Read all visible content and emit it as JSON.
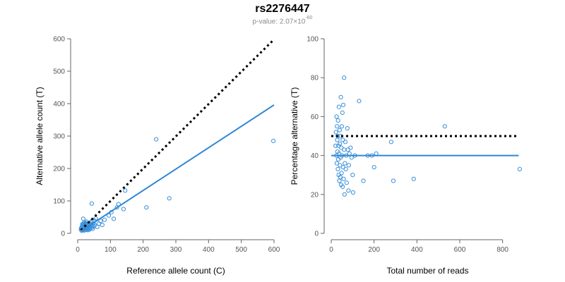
{
  "title": "rs2276447",
  "subtitle": {
    "prefix": "p-value: 2.07×10",
    "exponent": "-60"
  },
  "colors": {
    "points": "#3a8fd9",
    "fit_line": "#2f86d6",
    "reference_line": "#000000"
  },
  "chart_data": [
    {
      "type": "scatter",
      "xlabel": "Reference allele count (C)",
      "ylabel": "Alternative allele count (T)",
      "xlim": [
        0,
        600
      ],
      "ylim": [
        0,
        600
      ],
      "x_ticks": [
        0,
        100,
        200,
        300,
        400,
        500,
        600
      ],
      "y_ticks": [
        0,
        100,
        200,
        300,
        400,
        500,
        600
      ],
      "grid": false,
      "lines": [
        {
          "style": "dotted",
          "color": "#000000",
          "x": [
            10,
            600
          ],
          "y": [
            10,
            598
          ]
        },
        {
          "style": "solid",
          "color": "#2f86d6",
          "x": [
            10,
            600
          ],
          "y": [
            7,
            396
          ]
        }
      ],
      "points": [
        [
          12,
          8
        ],
        [
          14,
          12
        ],
        [
          16,
          10
        ],
        [
          18,
          14
        ],
        [
          20,
          9
        ],
        [
          22,
          16
        ],
        [
          24,
          12
        ],
        [
          25,
          20
        ],
        [
          26,
          11
        ],
        [
          28,
          15
        ],
        [
          30,
          18
        ],
        [
          31,
          10
        ],
        [
          32,
          22
        ],
        [
          33,
          13
        ],
        [
          34,
          17
        ],
        [
          35,
          25
        ],
        [
          36,
          12
        ],
        [
          38,
          20
        ],
        [
          40,
          16
        ],
        [
          42,
          28
        ],
        [
          44,
          18
        ],
        [
          45,
          24
        ],
        [
          46,
          14
        ],
        [
          48,
          30
        ],
        [
          50,
          22
        ],
        [
          52,
          26
        ],
        [
          15,
          25
        ],
        [
          18,
          30
        ],
        [
          20,
          34
        ],
        [
          22,
          20
        ],
        [
          24,
          28
        ],
        [
          26,
          32
        ],
        [
          28,
          24
        ],
        [
          30,
          14
        ],
        [
          32,
          30
        ],
        [
          12,
          18
        ],
        [
          14,
          28
        ],
        [
          16,
          22
        ],
        [
          10,
          12
        ],
        [
          11,
          16
        ],
        [
          13,
          20
        ],
        [
          17,
          45
        ],
        [
          19,
          12
        ],
        [
          21,
          26
        ],
        [
          23,
          30
        ],
        [
          27,
          36
        ],
        [
          29,
          22
        ],
        [
          34,
          26
        ],
        [
          36,
          32
        ],
        [
          40,
          35
        ],
        [
          44,
          38
        ],
        [
          43,
          92
        ],
        [
          50,
          40
        ],
        [
          55,
          46
        ],
        [
          60,
          20
        ],
        [
          65,
          30
        ],
        [
          70,
          38
        ],
        [
          75,
          26
        ],
        [
          82,
          42
        ],
        [
          95,
          55
        ],
        [
          103,
          65
        ],
        [
          110,
          45
        ],
        [
          120,
          80
        ],
        [
          125,
          90
        ],
        [
          140,
          75
        ],
        [
          145,
          132
        ],
        [
          210,
          80
        ],
        [
          240,
          290
        ],
        [
          280,
          108
        ],
        [
          598,
          285
        ]
      ]
    },
    {
      "type": "scatter",
      "xlabel": "Total number of reads",
      "ylabel": "Percentage alternative (T)",
      "xlim": [
        0,
        900
      ],
      "ylim": [
        0,
        100
      ],
      "x_ticks": [
        0,
        200,
        400,
        600,
        800
      ],
      "y_ticks": [
        0,
        20,
        40,
        60,
        80,
        100
      ],
      "grid": false,
      "lines": [
        {
          "style": "dotted",
          "color": "#000000",
          "x": [
            0,
            875
          ],
          "y": [
            50,
            50
          ]
        },
        {
          "style": "solid",
          "color": "#2f86d6",
          "x": [
            0,
            875
          ],
          "y": [
            40,
            40
          ]
        }
      ],
      "points": [
        [
          20,
          45
        ],
        [
          22,
          52
        ],
        [
          24,
          40
        ],
        [
          25,
          60
        ],
        [
          26,
          36
        ],
        [
          27,
          55
        ],
        [
          28,
          48
        ],
        [
          29,
          42
        ],
        [
          30,
          50
        ],
        [
          31,
          33
        ],
        [
          32,
          58
        ],
        [
          33,
          38
        ],
        [
          34,
          45
        ],
        [
          35,
          30
        ],
        [
          36,
          65
        ],
        [
          37,
          41
        ],
        [
          38,
          27
        ],
        [
          39,
          53
        ],
        [
          40,
          46
        ],
        [
          41,
          35
        ],
        [
          42,
          29
        ],
        [
          43,
          50
        ],
        [
          44,
          39
        ],
        [
          45,
          70
        ],
        [
          46,
          25
        ],
        [
          47,
          44
        ],
        [
          48,
          31
        ],
        [
          49,
          55
        ],
        [
          50,
          40
        ],
        [
          52,
          62
        ],
        [
          53,
          24
        ],
        [
          54,
          48
        ],
        [
          55,
          34
        ],
        [
          56,
          66
        ],
        [
          58,
          28
        ],
        [
          60,
          80
        ],
        [
          60,
          43
        ],
        [
          62,
          20
        ],
        [
          64,
          36
        ],
        [
          66,
          47
        ],
        [
          68,
          33
        ],
        [
          70,
          40
        ],
        [
          72,
          26
        ],
        [
          75,
          54
        ],
        [
          78,
          43
        ],
        [
          80,
          22
        ],
        [
          82,
          35
        ],
        [
          85,
          41
        ],
        [
          90,
          44
        ],
        [
          95,
          39
        ],
        [
          100,
          30
        ],
        [
          102,
          21
        ],
        [
          110,
          40
        ],
        [
          130,
          68
        ],
        [
          150,
          27
        ],
        [
          170,
          40
        ],
        [
          190,
          40
        ],
        [
          200,
          34
        ],
        [
          210,
          41
        ],
        [
          280,
          47
        ],
        [
          290,
          27
        ],
        [
          385,
          28
        ],
        [
          530,
          55
        ],
        [
          880,
          33
        ]
      ]
    }
  ]
}
